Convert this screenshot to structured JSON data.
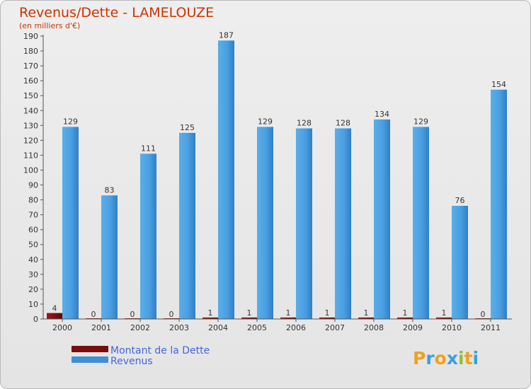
{
  "chart_data": {
    "type": "bar",
    "title": "Revenus/Dette - LAMELOUZE",
    "subtitle": "(en milliers d'€)",
    "categories": [
      "2000",
      "2001",
      "2002",
      "2003",
      "2004",
      "2005",
      "2006",
      "2007",
      "2008",
      "2009",
      "2010",
      "2011"
    ],
    "series": [
      {
        "name": "Montant de la Dette",
        "color": "#7a0c0c",
        "values": [
          4,
          0,
          0,
          0,
          1,
          1,
          1,
          1,
          1,
          1,
          1,
          0
        ]
      },
      {
        "name": "Revenus",
        "color": "#3d8fd6",
        "values": [
          129,
          83,
          111,
          125,
          187,
          129,
          128,
          128,
          134,
          129,
          76,
          154
        ]
      }
    ],
    "ylim": [
      0,
      190
    ],
    "yticks": [
      0,
      10,
      20,
      30,
      40,
      50,
      60,
      70,
      80,
      90,
      100,
      110,
      120,
      130,
      140,
      150,
      160,
      170,
      180,
      190
    ],
    "grid": false,
    "legend_position": "bottom-left"
  },
  "logo": {
    "letters": [
      "P",
      "r",
      "o",
      "x",
      "i",
      "t",
      "i"
    ],
    "colors": [
      "#f0a020",
      "#3aa0e0",
      "#f0a020",
      "#3aa0e0",
      "#90c030",
      "#f0a020",
      "#3aa0e0"
    ]
  }
}
